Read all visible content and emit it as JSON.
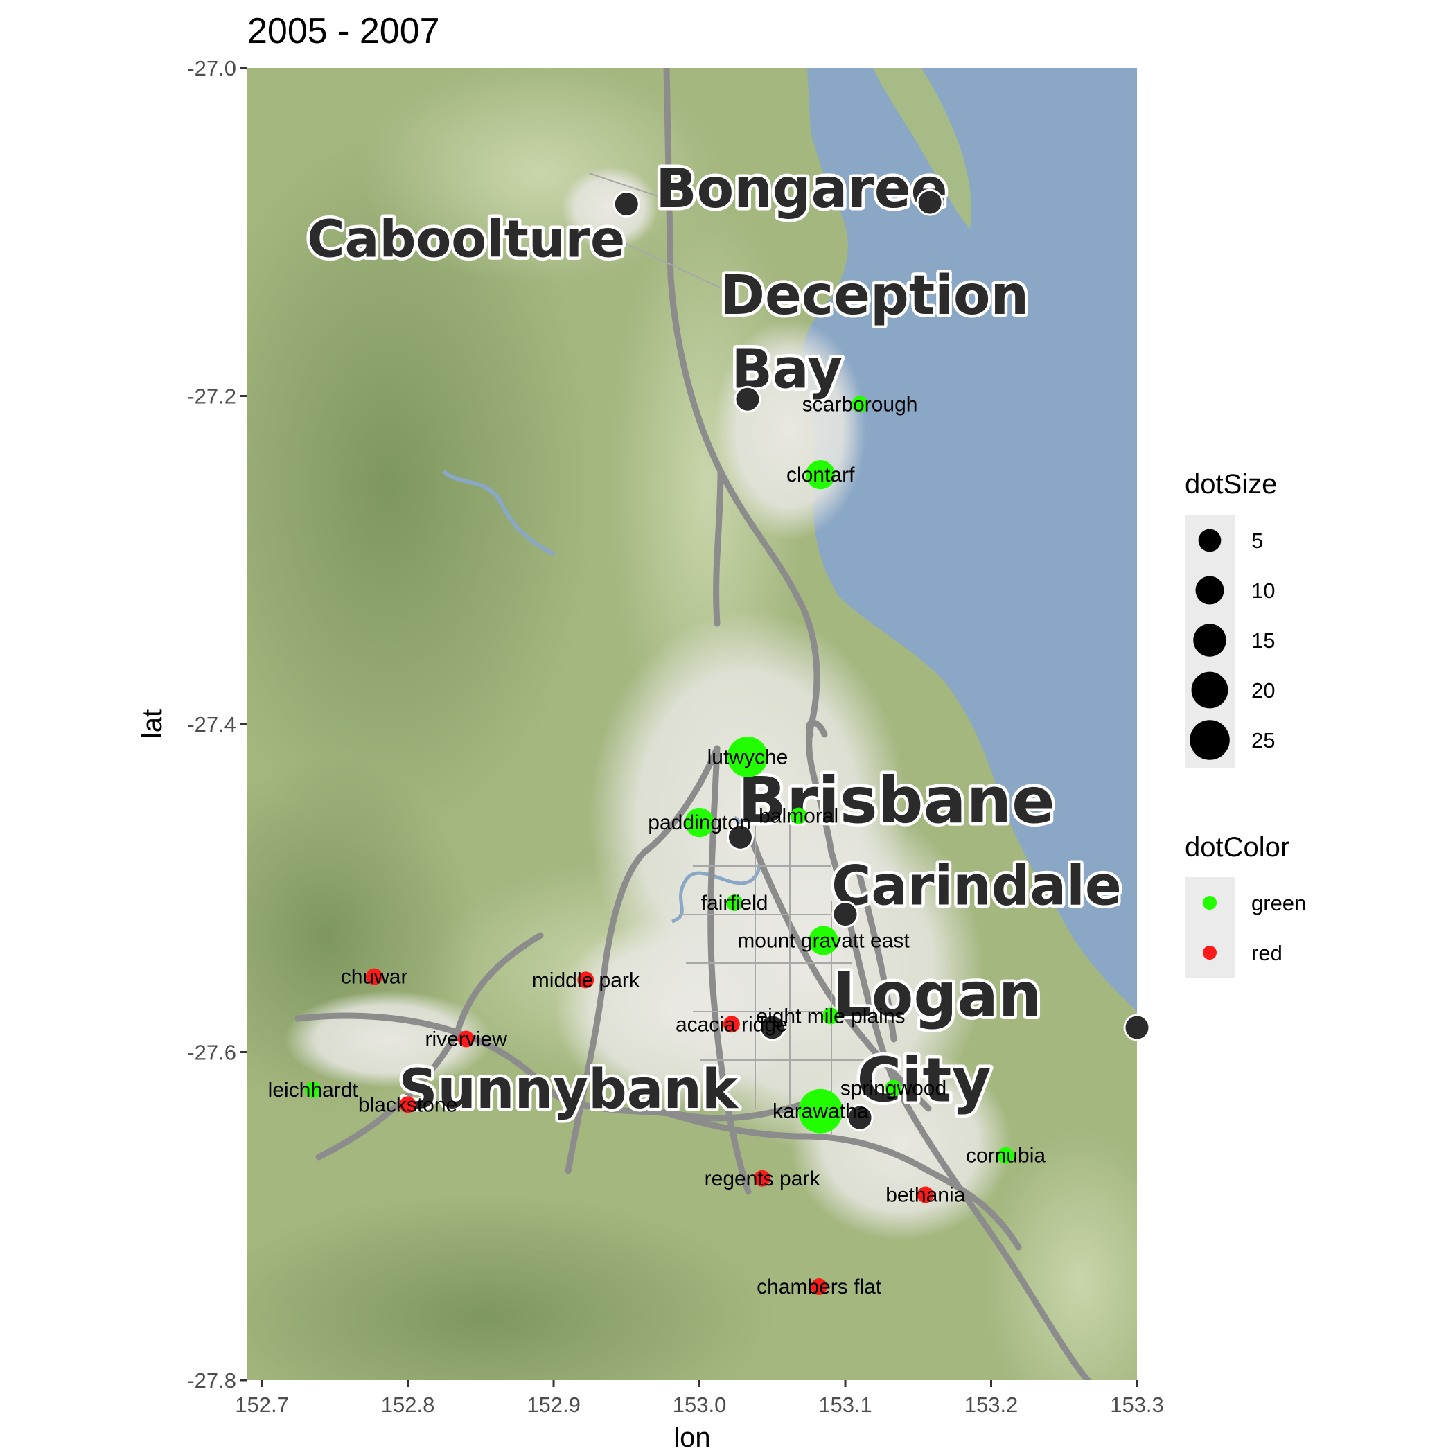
{
  "chart_data": {
    "type": "scatter",
    "title": "2005 - 2007",
    "xlabel": "lon",
    "ylabel": "lat",
    "xlim": [
      152.69,
      153.3
    ],
    "ylim": [
      -27.8,
      -27.0
    ],
    "xticks": [
      "152.7",
      "152.8",
      "152.9",
      "153.0",
      "153.1",
      "153.2",
      "153.3"
    ],
    "yticks": [
      "-27.0",
      "-27.2",
      "-27.4",
      "-27.6",
      "-27.8"
    ],
    "grid": false,
    "background": "terrain basemap",
    "colors": {
      "green": "#22ff00",
      "red": "#ff1a1a",
      "water": "#8aa7c6"
    },
    "points": [
      {
        "label": "scarborough",
        "lon": 153.11,
        "lat": -27.205,
        "size": 1,
        "color": "green"
      },
      {
        "label": "clontarf",
        "lon": 153.083,
        "lat": -27.248,
        "size": 8,
        "color": "green"
      },
      {
        "label": "lutwyche",
        "lon": 153.033,
        "lat": -27.42,
        "size": 20,
        "color": "green"
      },
      {
        "label": "paddington",
        "lon": 153.0,
        "lat": -27.46,
        "size": 8,
        "color": "green"
      },
      {
        "label": "balmoral",
        "lon": 153.068,
        "lat": -27.456,
        "size": 1,
        "color": "green"
      },
      {
        "label": "fairfield",
        "lon": 153.024,
        "lat": -27.509,
        "size": 1,
        "color": "green"
      },
      {
        "label": "mount gravatt east",
        "lon": 153.085,
        "lat": -27.532,
        "size": 8,
        "color": "green"
      },
      {
        "label": "chuwar",
        "lon": 152.777,
        "lat": -27.554,
        "size": 1,
        "color": "red"
      },
      {
        "label": "middle park",
        "lon": 152.922,
        "lat": -27.556,
        "size": 1,
        "color": "red"
      },
      {
        "label": "eight mile plains",
        "lon": 153.09,
        "lat": -27.578,
        "size": 1,
        "color": "green"
      },
      {
        "label": "acacia ridge",
        "lon": 153.022,
        "lat": -27.583,
        "size": 1,
        "color": "red"
      },
      {
        "label": "riverview",
        "lon": 152.84,
        "lat": -27.592,
        "size": 1,
        "color": "red"
      },
      {
        "label": "leichhardt",
        "lon": 152.735,
        "lat": -27.623,
        "size": 1,
        "color": "green"
      },
      {
        "label": "blackstone",
        "lon": 152.8,
        "lat": -27.632,
        "size": 1,
        "color": "red"
      },
      {
        "label": "springwood",
        "lon": 153.133,
        "lat": -27.622,
        "size": 1,
        "color": "green"
      },
      {
        "label": "karawatha",
        "lon": 153.083,
        "lat": -27.636,
        "size": 25,
        "color": "green"
      },
      {
        "label": "cornubia",
        "lon": 153.21,
        "lat": -27.663,
        "size": 1,
        "color": "green"
      },
      {
        "label": "regents park",
        "lon": 153.043,
        "lat": -27.677,
        "size": 1,
        "color": "red"
      },
      {
        "label": "bethania",
        "lon": 153.155,
        "lat": -27.687,
        "size": 1,
        "color": "red"
      },
      {
        "label": "chambers flat",
        "lon": 153.082,
        "lat": -27.743,
        "size": 1,
        "color": "red"
      }
    ],
    "map_labels": [
      {
        "text": "Caboolture",
        "lon": 152.84,
        "lat": -27.115
      },
      {
        "text": "Bongaree",
        "lon": 153.07,
        "lat": -27.085
      },
      {
        "text": "Deception",
        "lon": 153.12,
        "lat": -27.15
      },
      {
        "text": "Bay",
        "lon": 153.06,
        "lat": -27.195
      },
      {
        "text": "Brisbane",
        "lon": 153.135,
        "lat": -27.46
      },
      {
        "text": "Carindale",
        "lon": 153.19,
        "lat": -27.51
      },
      {
        "text": "Logan",
        "lon": 153.163,
        "lat": -27.578
      },
      {
        "text": "City",
        "lon": 153.154,
        "lat": -27.63
      },
      {
        "text": "Sunnybank",
        "lon": 152.91,
        "lat": -27.634
      }
    ],
    "map_markers": [
      {
        "lon": 152.95,
        "lat": -27.083
      },
      {
        "lon": 153.158,
        "lat": -27.082
      },
      {
        "lon": 153.033,
        "lat": -27.202
      },
      {
        "lon": 153.028,
        "lat": -27.469
      },
      {
        "lon": 153.1,
        "lat": -27.516
      },
      {
        "lon": 153.05,
        "lat": -27.585
      },
      {
        "lon": 153.11,
        "lat": -27.64
      },
      {
        "lon": 153.3,
        "lat": -27.585
      }
    ],
    "legends": [
      {
        "title": "dotSize",
        "entries": [
          "5",
          "10",
          "15",
          "20",
          "25"
        ],
        "values": [
          5,
          10,
          15,
          20,
          25
        ]
      },
      {
        "title": "dotColor",
        "entries": [
          "green",
          "red"
        ]
      }
    ],
    "legend_position": "right"
  }
}
